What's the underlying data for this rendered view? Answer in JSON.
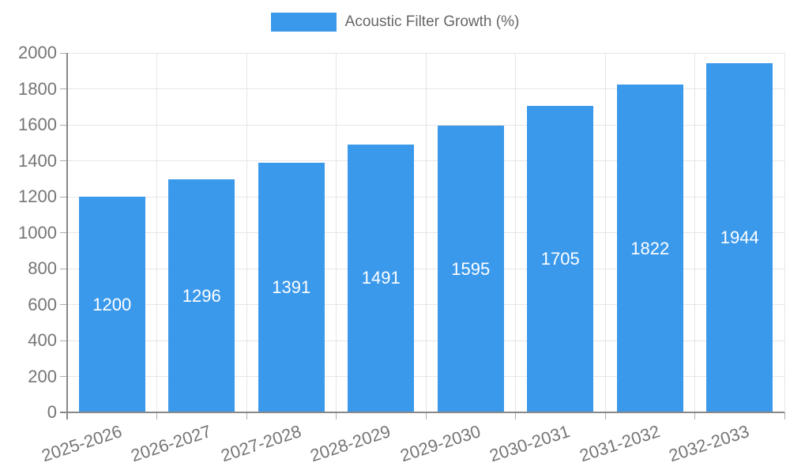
{
  "chart_data": {
    "type": "bar",
    "legend_label": "Acoustic Filter Growth (%)",
    "legend_position": "top-center",
    "categories": [
      "2025-2026",
      "2026-2027",
      "2027-2028",
      "2028-2029",
      "2029-2030",
      "2030-2031",
      "2031-2032",
      "2032-2033"
    ],
    "values": [
      1200,
      1296,
      1391,
      1491,
      1595,
      1705,
      1822,
      1944
    ],
    "value_labels_position": "inside-center",
    "xlabel": "",
    "ylabel": "",
    "ylim": [
      0,
      2000
    ],
    "ytick_step": 200,
    "grid": true,
    "x_label_rotation_deg": -18,
    "colors": {
      "bar": "#3B99EC",
      "value_text": "#FFFFFF",
      "axis_text": "#757575",
      "legend_text": "#666666",
      "gridline": "#E6E6E6",
      "tick": "#ABABAB",
      "axis_line": "#888888",
      "background": "#FFFFFF"
    }
  }
}
